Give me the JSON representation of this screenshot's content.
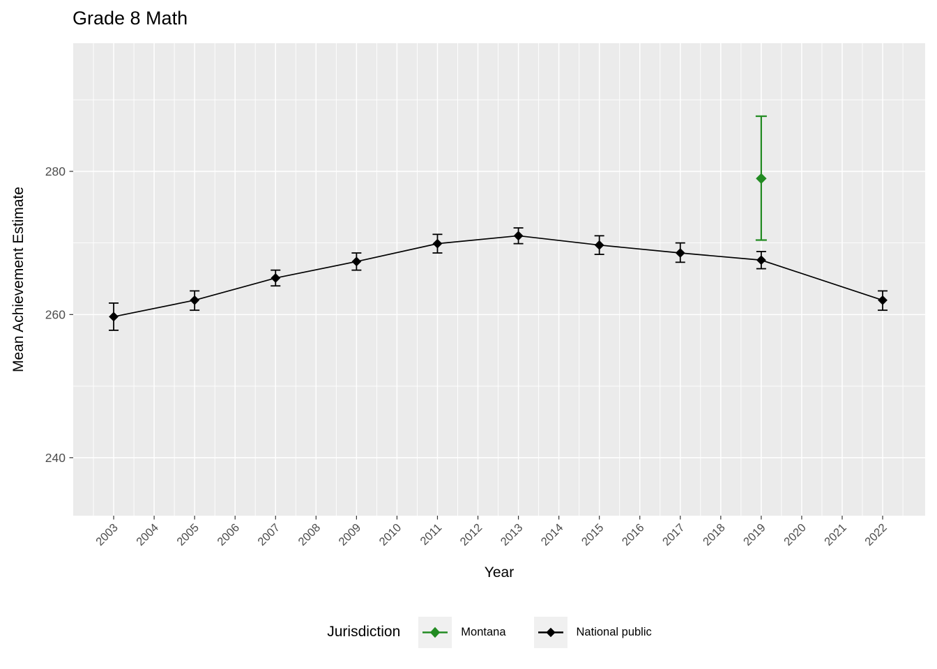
{
  "chart_data": {
    "type": "line",
    "title": "Grade 8 Math",
    "xlabel": "Year",
    "ylabel": "Mean Achievement Estimate",
    "x_ticks": [
      2003,
      2004,
      2005,
      2006,
      2007,
      2008,
      2009,
      2010,
      2011,
      2012,
      2013,
      2014,
      2015,
      2016,
      2017,
      2018,
      2019,
      2020,
      2021,
      2022
    ],
    "y_ticks": [
      240,
      260,
      280
    ],
    "y_minor_ticks": [
      250,
      270,
      290
    ],
    "xlim": [
      2002.0,
      2023.05
    ],
    "ylim": [
      231.9,
      297.9
    ],
    "grid": true,
    "panel_bg": "#EBEBEB",
    "grid_color": "#FFFFFF",
    "tick_color": "#333333",
    "tick_label_color": "#4D4D4D",
    "legend": {
      "title": "Jurisdiction",
      "position": "bottom",
      "entries": [
        {
          "label": "Montana",
          "color": "#228B22"
        },
        {
          "label": "National public",
          "color": "#000000"
        }
      ]
    },
    "series": [
      {
        "name": "National public",
        "color": "#000000",
        "marker": "diamond",
        "line": true,
        "points": [
          {
            "x": 2003,
            "y": 259.7,
            "ymin": 257.8,
            "ymax": 261.6
          },
          {
            "x": 2005,
            "y": 262.0,
            "ymin": 260.6,
            "ymax": 263.3
          },
          {
            "x": 2007,
            "y": 265.1,
            "ymin": 264.0,
            "ymax": 266.2
          },
          {
            "x": 2009,
            "y": 267.4,
            "ymin": 266.2,
            "ymax": 268.6
          },
          {
            "x": 2011,
            "y": 269.9,
            "ymin": 268.6,
            "ymax": 271.2
          },
          {
            "x": 2013,
            "y": 271.0,
            "ymin": 269.9,
            "ymax": 272.1
          },
          {
            "x": 2015,
            "y": 269.7,
            "ymin": 268.4,
            "ymax": 271.0
          },
          {
            "x": 2017,
            "y": 268.6,
            "ymin": 267.3,
            "ymax": 270.0
          },
          {
            "x": 2019,
            "y": 267.6,
            "ymin": 266.4,
            "ymax": 268.8
          },
          {
            "x": 2022,
            "y": 262.0,
            "ymin": 260.6,
            "ymax": 263.3
          }
        ]
      },
      {
        "name": "Montana",
        "color": "#228B22",
        "marker": "diamond",
        "line": false,
        "points": [
          {
            "x": 2019,
            "y": 279.0,
            "ymin": 270.4,
            "ymax": 287.7
          }
        ]
      }
    ]
  }
}
